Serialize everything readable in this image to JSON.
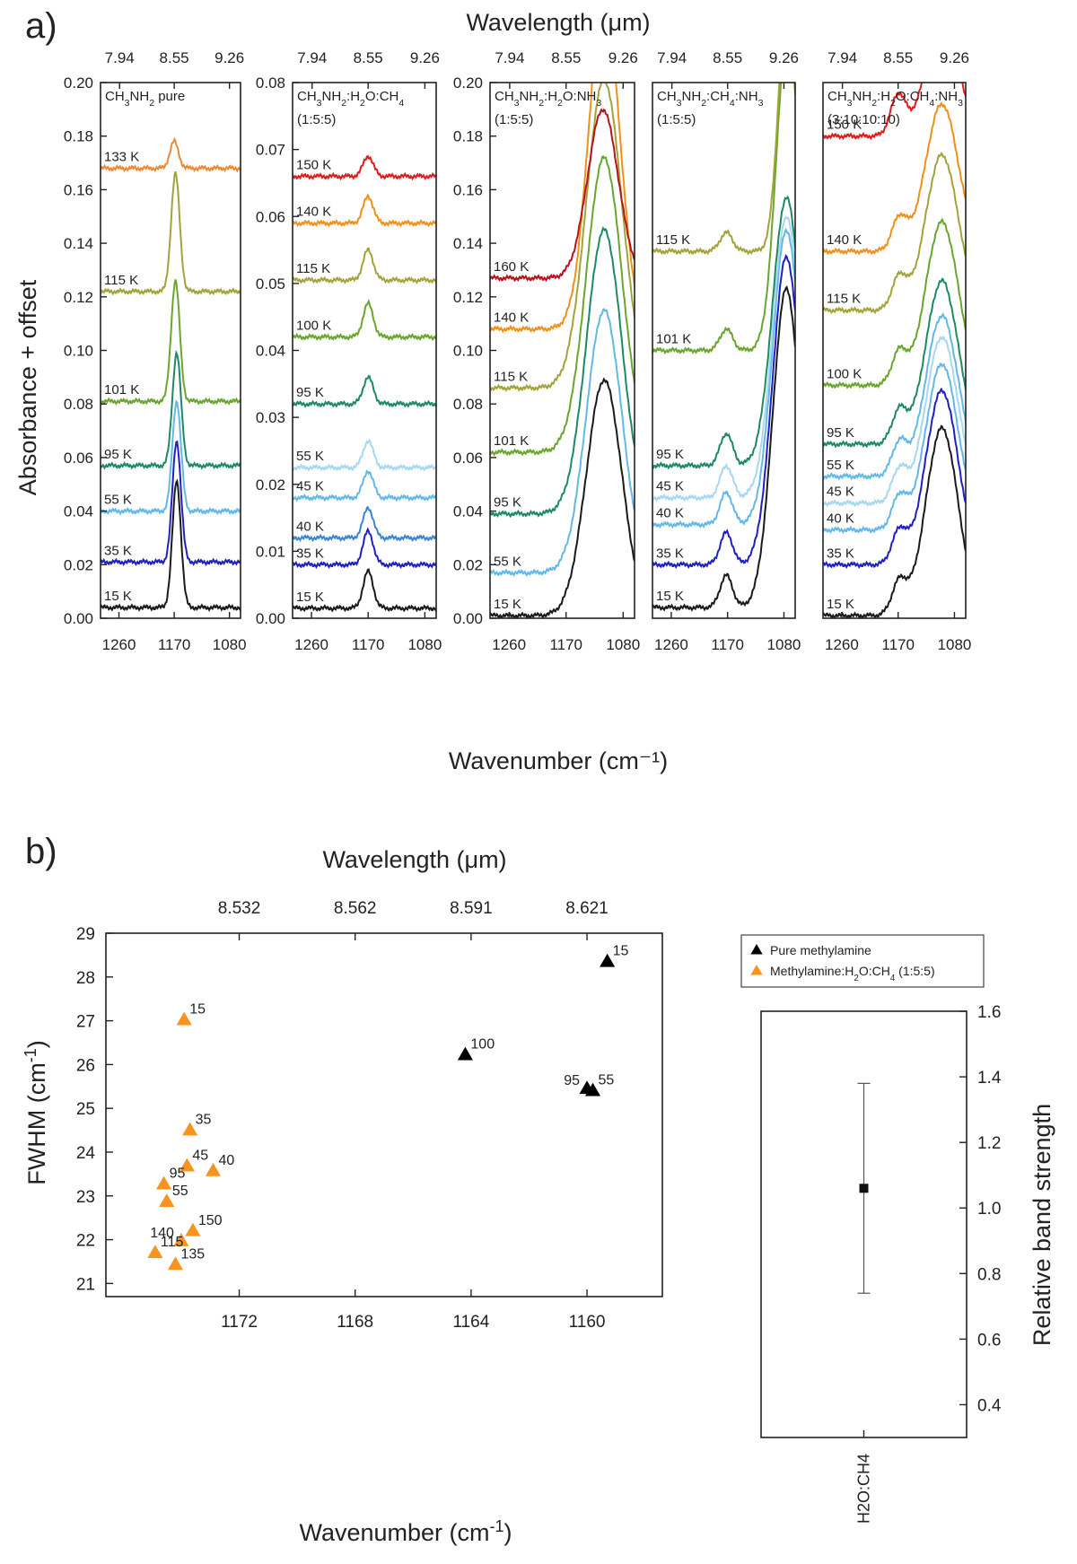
{
  "panel_a": {
    "label": "a)",
    "top_title": "Wavelength (μm)",
    "bottom_title": "Wavenumber (cm⁻¹)",
    "ylabel": "Absorbance + offset"
  },
  "panel_b": {
    "label": "b)",
    "top_title": "Wavelength (μm)"
  },
  "chart_data": [
    {
      "type": "line",
      "title": "CH3NH2 pure",
      "title_parts": [
        "CH",
        "3",
        "NH",
        "2",
        " pure"
      ],
      "subtitle": "",
      "xlabel": "Wavenumber (cm-1)",
      "ylabel": "Absorbance + offset",
      "xlim": [
        1290,
        1062
      ],
      "ylim": [
        0,
        0.2
      ],
      "x_ticks": [
        1260,
        1170,
        1080
      ],
      "x_tick_labels": [
        "1260",
        "1170",
        "1080"
      ],
      "top_ticks": [
        1259,
        1170,
        1080
      ],
      "top_tick_labels": [
        "7.94",
        "8.55",
        "9.26"
      ],
      "y_ticks": [
        0,
        0.02,
        0.04,
        0.06,
        0.08,
        0.1,
        0.12,
        0.14,
        0.16,
        0.18,
        0.2
      ],
      "y_tick_labels": [
        "0.00",
        "0.02",
        "0.04",
        "0.06",
        "0.08",
        "0.10",
        "0.12",
        "0.14",
        "0.16",
        "0.18",
        "0.20"
      ],
      "series": [
        {
          "name": "15 K",
          "color": "#1a1a1a",
          "baseline": 0.004,
          "peaks": [
            [
              1166,
              0.047,
              7
            ]
          ]
        },
        {
          "name": "35 K",
          "color": "#1f1fc4",
          "baseline": 0.021,
          "peaks": [
            [
              1166,
              0.045,
              7
            ]
          ]
        },
        {
          "name": "55 K",
          "color": "#62b8e8",
          "baseline": 0.04,
          "peaks": [
            [
              1166,
              0.041,
              7
            ]
          ]
        },
        {
          "name": "95 K",
          "color": "#1d8a63",
          "baseline": 0.057,
          "peaks": [
            [
              1166,
              0.042,
              7
            ]
          ]
        },
        {
          "name": "101 K",
          "color": "#6aa62d",
          "baseline": 0.081,
          "peaks": [
            [
              1168,
              0.045,
              7
            ]
          ]
        },
        {
          "name": "115 K",
          "color": "#a3a33a",
          "baseline": 0.122,
          "peaks": [
            [
              1168,
              0.044,
              7
            ]
          ]
        },
        {
          "name": "133 K",
          "color": "#e88a3a",
          "baseline": 0.168,
          "peaks": [
            [
              1170,
              0.01,
              7
            ]
          ]
        }
      ]
    },
    {
      "type": "line",
      "title": "CH3NH2:H2O:CH4",
      "title_parts": [
        "CH",
        "3",
        "NH",
        "2",
        ":H",
        "2",
        "O:CH",
        "4"
      ],
      "subtitle": "(1:5:5)",
      "xlabel": "Wavenumber (cm-1)",
      "ylabel": "Absorbance + offset",
      "xlim": [
        1290,
        1062
      ],
      "ylim": [
        0,
        0.08
      ],
      "x_ticks": [
        1260,
        1170,
        1080
      ],
      "x_tick_labels": [
        "1260",
        "1170",
        "1080"
      ],
      "top_ticks": [
        1259,
        1170,
        1080
      ],
      "top_tick_labels": [
        "7.94",
        "8.55",
        "9.26"
      ],
      "y_ticks": [
        0,
        0.01,
        0.02,
        0.03,
        0.04,
        0.05,
        0.06,
        0.07,
        0.08
      ],
      "y_tick_labels": [
        "0.00",
        "0.01",
        "0.02",
        "0.03",
        "0.04",
        "0.05",
        "0.06",
        "0.07",
        "0.08"
      ],
      "series": [
        {
          "name": "15 K",
          "color": "#1a1a1a",
          "baseline": 0.0015,
          "peaks": [
            [
              1170,
              0.0055,
              8
            ]
          ]
        },
        {
          "name": "35 K",
          "color": "#1f1fc4",
          "baseline": 0.008,
          "peaks": [
            [
              1170,
              0.005,
              8
            ]
          ]
        },
        {
          "name": "40 K",
          "color": "#3a86d4",
          "baseline": 0.012,
          "peaks": [
            [
              1170,
              0.0045,
              8
            ]
          ]
        },
        {
          "name": "45 K",
          "color": "#62b8e8",
          "baseline": 0.018,
          "peaks": [
            [
              1170,
              0.004,
              8
            ]
          ]
        },
        {
          "name": "55 K",
          "color": "#a8d8f0",
          "baseline": 0.0225,
          "peaks": [
            [
              1170,
              0.004,
              8
            ]
          ]
        },
        {
          "name": "95 K",
          "color": "#1d8a63",
          "baseline": 0.032,
          "peaks": [
            [
              1170,
              0.004,
              8
            ]
          ]
        },
        {
          "name": "100 K",
          "color": "#6aa62d",
          "baseline": 0.042,
          "peaks": [
            [
              1170,
              0.005,
              8
            ]
          ]
        },
        {
          "name": "115 K",
          "color": "#a3a33a",
          "baseline": 0.0505,
          "peaks": [
            [
              1170,
              0.0045,
              8
            ]
          ]
        },
        {
          "name": "140 K",
          "color": "#f0901a",
          "baseline": 0.059,
          "peaks": [
            [
              1170,
              0.004,
              8
            ]
          ]
        },
        {
          "name": "150 K",
          "color": "#e01b1b",
          "baseline": 0.066,
          "peaks": [
            [
              1170,
              0.003,
              8
            ]
          ]
        }
      ]
    },
    {
      "type": "line",
      "title": "CH3NH2:H2O:NH3",
      "title_parts": [
        "CH",
        "3",
        "NH",
        "2",
        ":H",
        "2",
        "O:NH",
        "3"
      ],
      "subtitle": "(1:5:5)",
      "xlabel": "Wavenumber (cm-1)",
      "ylabel": "Absorbance + offset",
      "xlim": [
        1290,
        1062
      ],
      "ylim": [
        0,
        0.2
      ],
      "x_ticks": [
        1260,
        1170,
        1080
      ],
      "x_tick_labels": [
        "1260",
        "1170",
        "1080"
      ],
      "top_ticks": [
        1259,
        1170,
        1080
      ],
      "top_tick_labels": [
        "7.94",
        "8.55",
        "9.26"
      ],
      "y_ticks": [
        0,
        0.02,
        0.04,
        0.06,
        0.08,
        0.1,
        0.12,
        0.14,
        0.16,
        0.18,
        0.2
      ],
      "y_tick_labels": [
        "0.00",
        "0.02",
        "0.04",
        "0.06",
        "0.08",
        "0.10",
        "0.12",
        "0.14",
        "0.16",
        "0.18",
        "0.20"
      ],
      "series": [
        {
          "name": "15 K",
          "color": "#1a1a1a",
          "baseline": 0.001,
          "peaks": [
            [
              1110,
              0.088,
              28
            ]
          ]
        },
        {
          "name": "55 K",
          "color": "#62b8e8",
          "baseline": 0.017,
          "peaks": [
            [
              1110,
              0.098,
              28
            ]
          ]
        },
        {
          "name": "95 K",
          "color": "#1d8a63",
          "baseline": 0.039,
          "peaks": [
            [
              1110,
              0.106,
              28
            ]
          ]
        },
        {
          "name": "101 K",
          "color": "#6aa62d",
          "baseline": 0.062,
          "peaks": [
            [
              1110,
              0.11,
              28
            ]
          ]
        },
        {
          "name": "115 K",
          "color": "#a3a33a",
          "baseline": 0.086,
          "peaks": [
            [
              1110,
              0.115,
              28
            ]
          ]
        },
        {
          "name": "140 K",
          "color": "#f0901a",
          "baseline": 0.108,
          "peaks": [
            [
              1110,
              0.125,
              24
            ]
          ]
        },
        {
          "name": "160 K",
          "color": "#b3141e",
          "baseline": 0.127,
          "peaks": [
            [
              1112,
              0.063,
              24
            ]
          ]
        }
      ]
    },
    {
      "type": "line",
      "title": "CH3NH2:CH4:NH3",
      "title_parts": [
        "CH",
        "3",
        "NH",
        "2",
        ":CH",
        "4",
        ":NH",
        "3"
      ],
      "subtitle": "(1:5:5)",
      "xlabel": "Wavenumber (cm-1)",
      "ylabel": "Absorbance + offset",
      "xlim": [
        1290,
        1062
      ],
      "ylim": [
        0,
        0.2
      ],
      "x_ticks": [
        1260,
        1170,
        1080
      ],
      "x_tick_labels": [
        "1260",
        "1170",
        "1080"
      ],
      "top_ticks": [
        1259,
        1170,
        1080
      ],
      "top_tick_labels": [
        "7.94",
        "8.55",
        "9.26"
      ],
      "y_ticks": [],
      "y_tick_labels": [],
      "series": [
        {
          "name": "15 K",
          "color": "#1a1a1a",
          "baseline": 0.004,
          "peaks": [
            [
              1076,
              0.119,
              22
            ],
            [
              1172,
              0.012,
              10
            ]
          ]
        },
        {
          "name": "35 K",
          "color": "#1f1fc4",
          "baseline": 0.02,
          "peaks": [
            [
              1076,
              0.115,
              22
            ],
            [
              1172,
              0.012,
              10
            ]
          ]
        },
        {
          "name": "40 K",
          "color": "#62b8e8",
          "baseline": 0.035,
          "peaks": [
            [
              1076,
              0.11,
              22
            ],
            [
              1172,
              0.012,
              10
            ]
          ]
        },
        {
          "name": "45 K",
          "color": "#a8d8f0",
          "baseline": 0.045,
          "peaks": [
            [
              1076,
              0.105,
              22
            ],
            [
              1172,
              0.012,
              10
            ]
          ]
        },
        {
          "name": "95 K",
          "color": "#1d8a63",
          "baseline": 0.057,
          "peaks": [
            [
              1076,
              0.1,
              22
            ],
            [
              1172,
              0.012,
              10
            ]
          ]
        },
        {
          "name": "101 K",
          "color": "#6aa62d",
          "baseline": 0.1,
          "peaks": [
            [
              1074,
              0.12,
              18
            ],
            [
              1172,
              0.008,
              10
            ]
          ]
        },
        {
          "name": "115 K",
          "color": "#a3a33a",
          "baseline": 0.137,
          "peaks": [
            [
              1074,
              0.1,
              14
            ],
            [
              1172,
              0.007,
              10
            ]
          ]
        }
      ]
    },
    {
      "type": "line",
      "title": "CH3NH2:H2O:CH4:NH3",
      "title_parts": [
        "CH",
        "3",
        "NH",
        "2",
        ":H",
        "2",
        "O:CH",
        "4",
        ":NH",
        "3"
      ],
      "subtitle": "(3:10:10:10)",
      "xlabel": "Wavenumber (cm-1)",
      "ylabel": "Absorbance + offset",
      "xlim": [
        1290,
        1062
      ],
      "ylim": [
        0,
        0.2
      ],
      "x_ticks": [
        1260,
        1170,
        1080
      ],
      "x_tick_labels": [
        "1260",
        "1170",
        "1080"
      ],
      "top_ticks": [
        1259,
        1170,
        1080
      ],
      "top_tick_labels": [
        "7.94",
        "8.55",
        "9.26"
      ],
      "y_ticks": [],
      "y_tick_labels": [],
      "series": [
        {
          "name": "15 K",
          "color": "#1a1a1a",
          "baseline": 0.001,
          "peaks": [
            [
              1100,
              0.07,
              26
            ],
            [
              1168,
              0.012,
              12
            ]
          ]
        },
        {
          "name": "35 K",
          "color": "#1f1fc4",
          "baseline": 0.02,
          "peaks": [
            [
              1100,
              0.065,
              26
            ],
            [
              1168,
              0.012,
              12
            ]
          ]
        },
        {
          "name": "40 K",
          "color": "#62b8e8",
          "baseline": 0.033,
          "peaks": [
            [
              1100,
              0.062,
              26
            ],
            [
              1168,
              0.012,
              12
            ]
          ]
        },
        {
          "name": "45 K",
          "color": "#a8d8f0",
          "baseline": 0.043,
          "peaks": [
            [
              1100,
              0.062,
              26
            ],
            [
              1168,
              0.012,
              12
            ]
          ]
        },
        {
          "name": "55 K",
          "color": "#62b8e8",
          "baseline": 0.053,
          "peaks": [
            [
              1100,
              0.06,
              26
            ],
            [
              1168,
              0.012,
              12
            ]
          ]
        },
        {
          "name": "95 K",
          "color": "#1d8a63",
          "baseline": 0.065,
          "peaks": [
            [
              1100,
              0.061,
              26
            ],
            [
              1168,
              0.012,
              12
            ]
          ]
        },
        {
          "name": "100 K",
          "color": "#6aa62d",
          "baseline": 0.087,
          "peaks": [
            [
              1100,
              0.061,
              26
            ],
            [
              1168,
              0.012,
              12
            ]
          ]
        },
        {
          "name": "115 K",
          "color": "#a3a33a",
          "baseline": 0.115,
          "peaks": [
            [
              1100,
              0.058,
              26
            ],
            [
              1168,
              0.012,
              12
            ]
          ]
        },
        {
          "name": "140 K",
          "color": "#f0901a",
          "baseline": 0.137,
          "peaks": [
            [
              1100,
              0.055,
              26
            ],
            [
              1168,
              0.012,
              12
            ]
          ]
        },
        {
          "name": "150 K",
          "color": "#e01b1b",
          "baseline": 0.18,
          "peaks": [
            [
              1100,
              0.042,
              26
            ],
            [
              1170,
              0.015,
              12
            ]
          ]
        }
      ]
    },
    {
      "type": "scatter",
      "title": "",
      "xlabel": "Wavenumber (cm-1)",
      "ylabel": "FWHM (cm-1)",
      "xlim": [
        1176.6,
        1157.4
      ],
      "ylim": [
        20.7,
        29
      ],
      "x_ticks": [
        1172,
        1168,
        1164,
        1160
      ],
      "x_tick_labels": [
        "1172",
        "1168",
        "1164",
        "1160"
      ],
      "y_ticks": [
        21,
        22,
        23,
        24,
        25,
        26,
        27,
        28,
        29
      ],
      "y_tick_labels": [
        "21",
        "22",
        "23",
        "24",
        "25",
        "26",
        "27",
        "28",
        "29"
      ],
      "top_ticks": [
        1172.0,
        1168.0,
        1164.0,
        1160.0
      ],
      "top_tick_labels": [
        "8.532",
        "8.562",
        "8.591",
        "8.621"
      ],
      "series": [
        {
          "name": "Pure methylamine",
          "color": "#000000",
          "points": [
            {
              "x": 1159.3,
              "y": 28.35,
              "label": "15",
              "anchor": "right"
            },
            {
              "x": 1164.2,
              "y": 26.22,
              "label": "100",
              "anchor": "right"
            },
            {
              "x": 1160.0,
              "y": 25.45,
              "label": "95",
              "anchor": "left"
            },
            {
              "x": 1159.8,
              "y": 25.4,
              "label": "55",
              "anchor": "right"
            }
          ]
        },
        {
          "name": "Methylamine:H2O:CH4 (1:5:5)",
          "color": "#f7931e",
          "points": [
            {
              "x": 1173.9,
              "y": 27.02,
              "label": "15",
              "anchor": "right"
            },
            {
              "x": 1173.7,
              "y": 24.5,
              "label": "35",
              "anchor": "right"
            },
            {
              "x": 1173.8,
              "y": 23.68,
              "label": "45",
              "anchor": "right"
            },
            {
              "x": 1172.9,
              "y": 23.57,
              "label": "40",
              "anchor": "right"
            },
            {
              "x": 1174.6,
              "y": 23.27,
              "label": "95",
              "anchor": "right"
            },
            {
              "x": 1174.5,
              "y": 22.87,
              "label": "55",
              "anchor": "right"
            },
            {
              "x": 1173.6,
              "y": 22.2,
              "label": "150",
              "anchor": "right"
            },
            {
              "x": 1174.0,
              "y": 21.97,
              "label": "140",
              "anchor": "left"
            },
            {
              "x": 1174.9,
              "y": 21.7,
              "label": "115",
              "anchor": "right"
            },
            {
              "x": 1174.2,
              "y": 21.43,
              "label": "135",
              "anchor": "right"
            }
          ]
        }
      ],
      "legend": [
        {
          "label": "Pure methylamine",
          "parts": [
            "Pure methylamine"
          ],
          "color": "#000000"
        },
        {
          "label": "Methylamine:H2O:CH4 (1:5:5)",
          "parts": [
            "Methylamine:H",
            "2",
            "O:CH",
            "4",
            " (1:5:5)"
          ],
          "color": "#f7931e"
        }
      ]
    },
    {
      "type": "scatter",
      "title": "",
      "xlabel": "",
      "ylabel": "Relative band strength",
      "categories": [
        "H2O:CH4"
      ],
      "values": [
        1.06
      ],
      "error": [
        0.32
      ],
      "ylim": [
        0.3,
        1.6
      ],
      "y_ticks": [
        0.4,
        0.6,
        0.8,
        1.0,
        1.2,
        1.4,
        1.6
      ],
      "y_tick_labels": [
        "0.4",
        "0.6",
        "0.8",
        "1.0",
        "1.2",
        "1.4",
        "1.6"
      ]
    }
  ]
}
